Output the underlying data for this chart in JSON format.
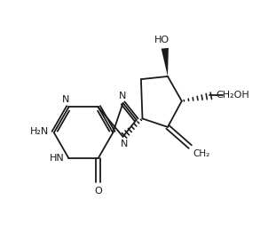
{
  "background": "#ffffff",
  "line_color": "#1a1a1a",
  "line_width": 1.3,
  "font_size": 8.0,
  "figsize": [
    3.02,
    2.7
  ],
  "dpi": 100,
  "xlim": [
    0.0,
    3.8
  ],
  "ylim": [
    0.3,
    3.3
  ]
}
